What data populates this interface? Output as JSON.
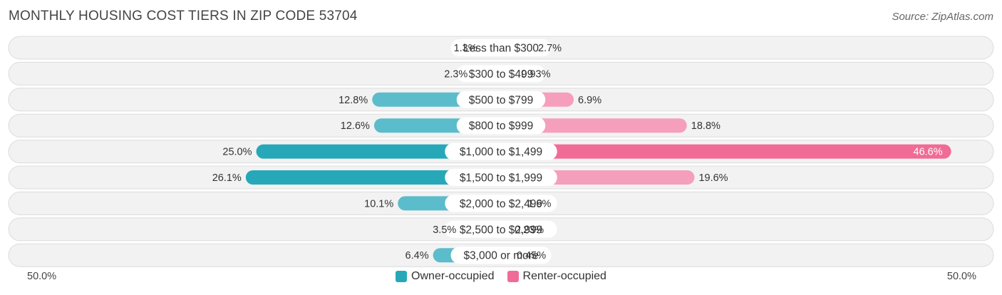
{
  "title": "MONTHLY HOUSING COST TIERS IN ZIP CODE 53704",
  "source": "Source: ZipAtlas.com",
  "colors": {
    "owner": "#5bbccb",
    "owner_strong": "#27a8b9",
    "renter": "#f59fbd",
    "renter_strong": "#f06b96",
    "row_bg": "#f2f2f2",
    "row_border": "#dcdcdc"
  },
  "axis": {
    "left_label": "50.0%",
    "right_label": "50.0%"
  },
  "legend": {
    "owner": "Owner-occupied",
    "renter": "Renter-occupied"
  },
  "chart_data": {
    "type": "bar",
    "orientation": "diverging-horizontal",
    "categories": [
      "Less than $300",
      "$300 to $499",
      "$500 to $799",
      "$800 to $999",
      "$1,000 to $1,499",
      "$1,500 to $1,999",
      "$2,000 to $2,499",
      "$2,500 to $2,999",
      "$3,000 or more"
    ],
    "series": [
      {
        "name": "Owner-occupied",
        "values": [
          1.3,
          2.3,
          12.8,
          12.6,
          25.0,
          26.1,
          10.1,
          3.5,
          6.4
        ],
        "labels": [
          "1.3%",
          "2.3%",
          "12.8%",
          "12.6%",
          "25.0%",
          "26.1%",
          "10.1%",
          "3.5%",
          "6.4%"
        ]
      },
      {
        "name": "Renter-occupied",
        "values": [
          2.7,
          0.93,
          6.9,
          18.8,
          46.6,
          19.6,
          1.6,
          0.23,
          0.45
        ],
        "labels": [
          "2.7%",
          "0.93%",
          "6.9%",
          "18.8%",
          "46.6%",
          "19.6%",
          "1.6%",
          "0.23%",
          "0.45%"
        ]
      }
    ],
    "xlim": [
      -50,
      50
    ],
    "unit": "%",
    "legend_position": "bottom-center"
  }
}
